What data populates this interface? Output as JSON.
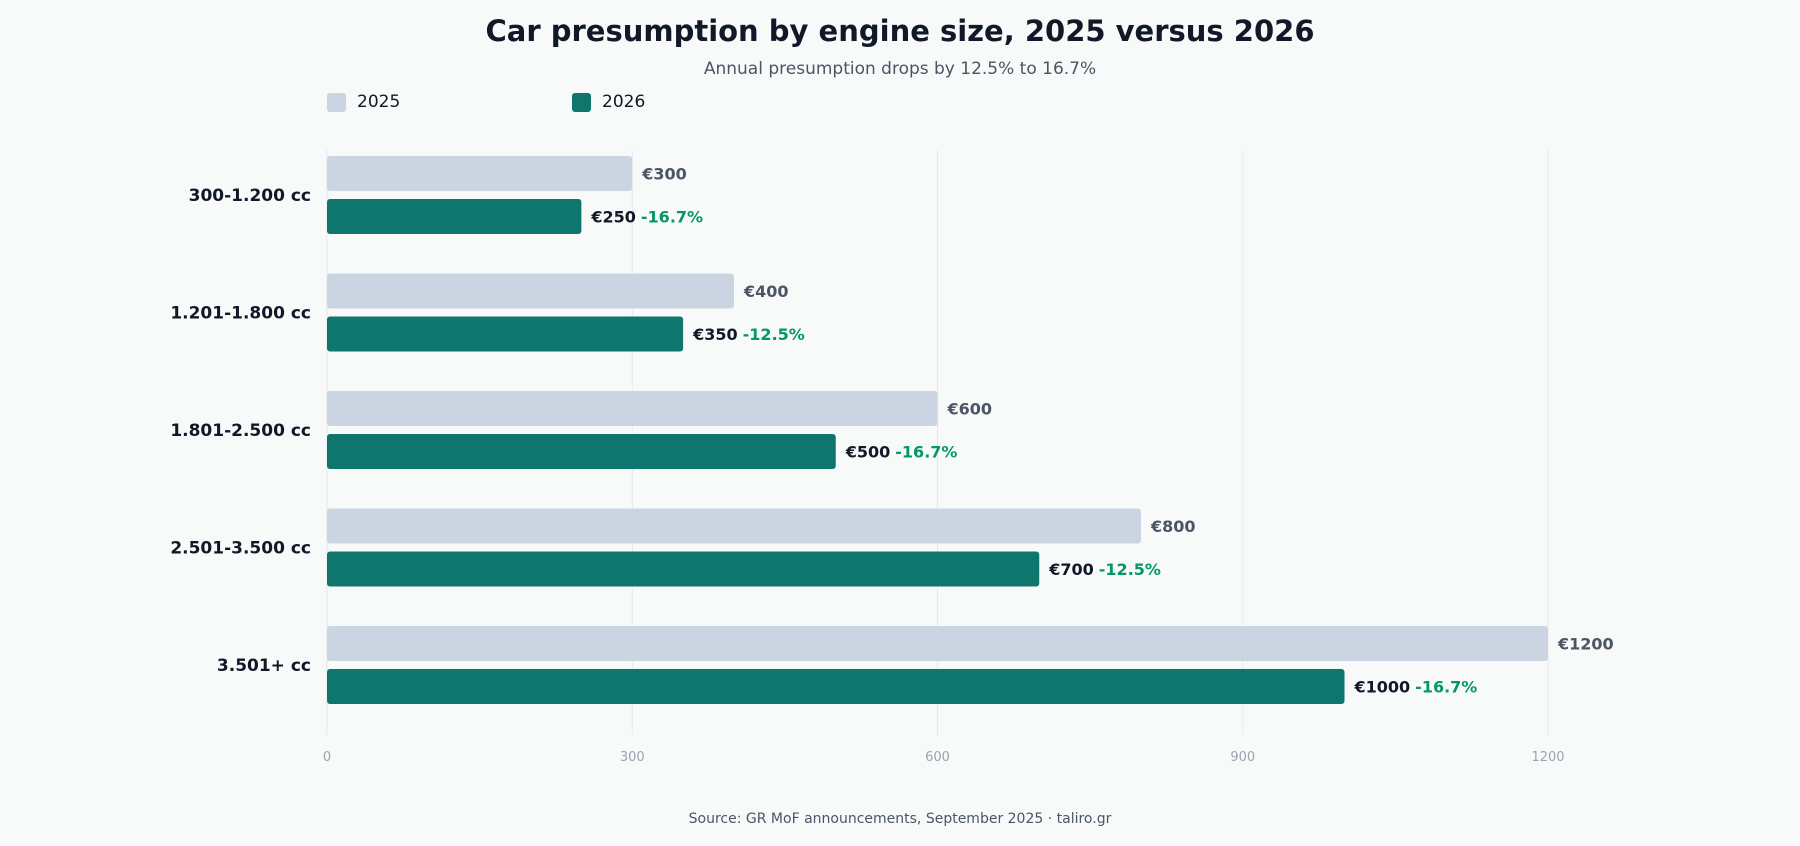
{
  "chart_data": {
    "type": "bar",
    "orientation": "horizontal",
    "title": "Car presumption by engine size, 2025 versus 2026",
    "subtitle": "Annual presumption drops by 12.5% to 16.7%",
    "source": "Source: GR MoF announcements, September 2025 · taliro.gr",
    "categories": [
      "300-1.200 cc",
      "1.201-1.800 cc",
      "1.801-2.500 cc",
      "2.501-3.500 cc",
      "3.501+ cc"
    ],
    "series": [
      {
        "name": "2025",
        "color": "#cbd5e1",
        "values": [
          300,
          400,
          600,
          800,
          1200
        ],
        "labels": [
          "€300",
          "€400",
          "€600",
          "€800",
          "€1200"
        ]
      },
      {
        "name": "2026",
        "color": "#0f766e",
        "values": [
          250,
          350,
          500,
          700,
          1000
        ],
        "labels": [
          "€250",
          "€350",
          "€500",
          "€700",
          "€1000"
        ],
        "change_labels": [
          "-16.7%",
          "-12.5%",
          "-16.7%",
          "-12.5%",
          "-16.7%"
        ]
      }
    ],
    "xlim": [
      0,
      1200
    ],
    "xticks": [
      0,
      300,
      600,
      900,
      1200
    ],
    "grid": "vertical",
    "legend_position": "top-left",
    "change_color": "#059669"
  }
}
